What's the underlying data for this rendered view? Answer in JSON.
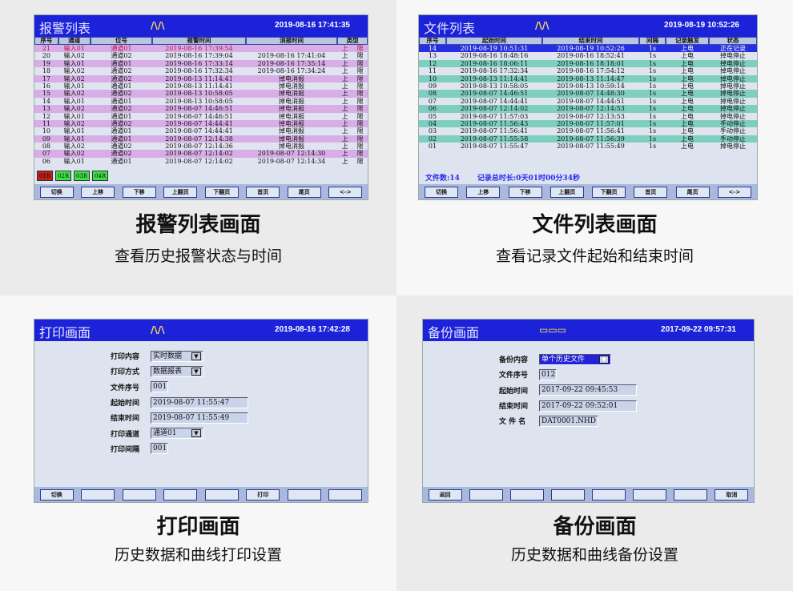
{
  "captions": [
    {
      "title": "报警列表画面",
      "subtitle": "查看历史报警状态与时间"
    },
    {
      "title": "文件列表画面",
      "subtitle": "查看记录文件起始和结束时间"
    },
    {
      "title": "打印画面",
      "subtitle": "历史数据和曲线打印设置"
    },
    {
      "title": "备份画面",
      "subtitle": "历史数据和曲线备份设置"
    }
  ],
  "alarm": {
    "title": "报警列表",
    "logo": "/\\/\\",
    "clock": "2019-08-16 17:41:35",
    "columns": [
      "序号",
      "通道",
      "位号",
      "报警时间",
      "消报时间",
      "类型"
    ],
    "rows": [
      [
        "21",
        "输入01",
        "通道01",
        "2019-08-16  17:39:54",
        "",
        "上",
        "限"
      ],
      [
        "20",
        "输入02",
        "通道02",
        "2019-08-16  17:39:04",
        "2019-08-16  17:41:04",
        "上",
        "限"
      ],
      [
        "19",
        "输入01",
        "通道01",
        "2019-08-16  17:33:14",
        "2019-08-16  17:35:14",
        "上",
        "限"
      ],
      [
        "18",
        "输入02",
        "通道02",
        "2019-08-16  17:32:34",
        "2019-08-16  17:34:24",
        "上",
        "限"
      ],
      [
        "17",
        "输入02",
        "通道02",
        "2019-08-13  11:14:41",
        "掉电消报",
        "上",
        "限"
      ],
      [
        "16",
        "输入01",
        "通道01",
        "2019-08-13  11:14:41",
        "掉电消报",
        "上",
        "限"
      ],
      [
        "15",
        "输入02",
        "通道02",
        "2019-08-13  10:58:05",
        "掉电消报",
        "上",
        "限"
      ],
      [
        "14",
        "输入01",
        "通道01",
        "2019-08-13  10:58:05",
        "掉电消报",
        "上",
        "限"
      ],
      [
        "13",
        "输入02",
        "通道02",
        "2019-08-07  14:46:51",
        "掉电消报",
        "上",
        "限"
      ],
      [
        "12",
        "输入01",
        "通道01",
        "2019-08-07  14:46:51",
        "掉电消报",
        "上",
        "限"
      ],
      [
        "11",
        "输入02",
        "通道02",
        "2019-08-07  14:44:41",
        "掉电消报",
        "上",
        "限"
      ],
      [
        "10",
        "输入01",
        "通道01",
        "2019-08-07  14:44:41",
        "掉电消报",
        "上",
        "限"
      ],
      [
        "09",
        "输入01",
        "通道01",
        "2019-08-07  12:14:38",
        "掉电消报",
        "上",
        "限"
      ],
      [
        "08",
        "输入02",
        "通道02",
        "2019-08-07  12:14:36",
        "掉电消报",
        "上",
        "限"
      ],
      [
        "07",
        "输入02",
        "通道02",
        "2019-08-07  12:14:02",
        "2019-08-07  12:14:30",
        "上",
        "限"
      ],
      [
        "06",
        "输入01",
        "通道01",
        "2019-08-07  12:14:02",
        "2019-08-07  12:14:34",
        "上",
        "限"
      ]
    ],
    "indicators": [
      {
        "label": "01R",
        "color": "#c0201a"
      },
      {
        "label": "02R",
        "color": "#3ee04a"
      },
      {
        "label": "03R",
        "color": "#3ee04a"
      },
      {
        "label": "04R",
        "color": "#3ee04a"
      }
    ],
    "buttons": [
      "切换",
      "上移",
      "下移",
      "上翻页",
      "下翻页",
      "首页",
      "尾页",
      "<->"
    ]
  },
  "files": {
    "title": "文件列表",
    "logo": "/\\/\\",
    "clock": "2019-08-19 10:52:26",
    "columns": [
      "序号",
      "起始时间",
      "结束时间",
      "间隔",
      "记录触发",
      "状态"
    ],
    "rows": [
      [
        "14",
        "2019-08-19  10:51:31",
        "2019-08-19  10:52:26",
        "1s",
        "上电",
        "正在记录"
      ],
      [
        "13",
        "2019-08-16  18:48:16",
        "2019-08-16  18:52:41",
        "1s",
        "上电",
        "掉电停止"
      ],
      [
        "12",
        "2019-08-16  18:06:11",
        "2019-08-16  18:18:01",
        "1s",
        "上电",
        "掉电停止"
      ],
      [
        "11",
        "2019-08-16  17:32:34",
        "2019-08-16  17:54:12",
        "1s",
        "上电",
        "掉电停止"
      ],
      [
        "10",
        "2019-08-13  11:14:41",
        "2019-08-13  11:14:47",
        "1s",
        "上电",
        "掉电停止"
      ],
      [
        "09",
        "2019-08-13  10:58:05",
        "2019-08-13  10:59:14",
        "1s",
        "上电",
        "掉电停止"
      ],
      [
        "08",
        "2019-08-07  14:46:51",
        "2019-08-07  14:48:30",
        "1s",
        "上电",
        "掉电停止"
      ],
      [
        "07",
        "2019-08-07  14:44:41",
        "2019-08-07  14:44:51",
        "1s",
        "上电",
        "掉电停止"
      ],
      [
        "06",
        "2019-08-07  12:14:02",
        "2019-08-07  12:14:53",
        "1s",
        "上电",
        "掉电停止"
      ],
      [
        "05",
        "2019-08-07  11:57:03",
        "2019-08-07  12:13:53",
        "1s",
        "上电",
        "掉电停止"
      ],
      [
        "04",
        "2019-08-07  11:56:43",
        "2019-08-07  11:57:01",
        "1s",
        "上电",
        "手动停止"
      ],
      [
        "03",
        "2019-08-07  11:56:41",
        "2019-08-07  11:56:41",
        "1s",
        "上电",
        "手动停止"
      ],
      [
        "02",
        "2019-08-07  11:55:58",
        "2019-08-07  11:56:39",
        "1s",
        "上电",
        "手动停止"
      ],
      [
        "01",
        "2019-08-07  11:55:47",
        "2019-08-07  11:55:49",
        "1s",
        "上电",
        "掉电停止"
      ]
    ],
    "file_count": "文件数:14",
    "total_duration": "记录总时长:0天01时00分34秒",
    "buttons": [
      "切换",
      "上移",
      "下移",
      "上翻页",
      "下翻页",
      "首页",
      "尾页",
      "<->"
    ]
  },
  "print": {
    "title": "打印画面",
    "logo": "/\\/\\",
    "clock": "2019-08-16 17:42:28",
    "fields": [
      {
        "label": "打印内容",
        "value": "实时数据",
        "dropdown": true
      },
      {
        "label": "打印方式",
        "value": "数据报表",
        "dropdown": true
      },
      {
        "label": "文件序号",
        "value": "001"
      },
      {
        "label": "起始时间",
        "value": "2019-08-07  11:55:47"
      },
      {
        "label": "结束时间",
        "value": "2019-08-07  11:55:49"
      },
      {
        "label": "打印通道",
        "value": "通道01",
        "dropdown": true
      },
      {
        "label": "打印间隔",
        "value": "001"
      }
    ],
    "buttons": [
      "切换",
      "",
      "",
      "",
      "",
      "打印",
      "",
      ""
    ]
  },
  "backup": {
    "title": "备份画面",
    "logo": "▭▭▭",
    "clock": "2017-09-22 09:57:31",
    "fields": [
      {
        "label": "备份内容",
        "value": "单个历史文件",
        "dropdown": true
      },
      {
        "label": "文件序号",
        "value": "012"
      },
      {
        "label": "起始时间",
        "value": "2017-09-22  09:45:53"
      },
      {
        "label": "结束时间",
        "value": "2017-09-22  09:52:01"
      },
      {
        "label": "文 件 名",
        "value": "DAT0001.NHD"
      }
    ],
    "buttons": [
      "返回",
      "",
      "",
      "",
      "",
      "",
      "",
      "取消"
    ]
  }
}
